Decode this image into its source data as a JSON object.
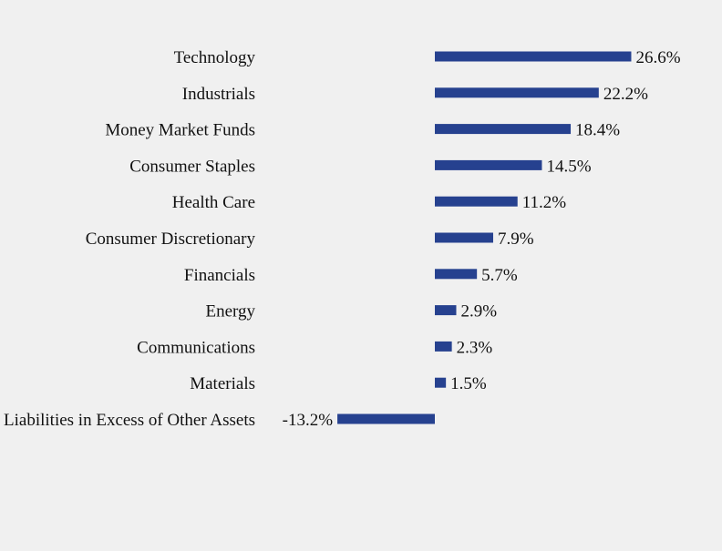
{
  "colors": {
    "background": "#f0f0f0",
    "bar": "#26418f",
    "text": "#111111"
  },
  "chart_data": {
    "type": "bar",
    "orientation": "horizontal",
    "title": "",
    "xlabel": "",
    "ylabel": "",
    "value_suffix": "%",
    "grid": false,
    "legend": "none",
    "xlim": [
      -13.2,
      26.6
    ],
    "categories": [
      "Technology",
      "Industrials",
      "Money Market Funds",
      "Consumer Staples",
      "Health Care",
      "Consumer Discretionary",
      "Financials",
      "Energy",
      "Communications",
      "Materials",
      "Liabilities in Excess of Other Assets"
    ],
    "values": [
      26.6,
      22.2,
      18.4,
      14.5,
      11.2,
      7.9,
      5.7,
      2.9,
      2.3,
      1.5,
      -13.2
    ],
    "value_labels": [
      "26.6%",
      "22.2%",
      "18.4%",
      "14.5%",
      "11.2%",
      "7.9%",
      "5.7%",
      "2.9%",
      "2.3%",
      "1.5%",
      "-13.2%"
    ]
  }
}
